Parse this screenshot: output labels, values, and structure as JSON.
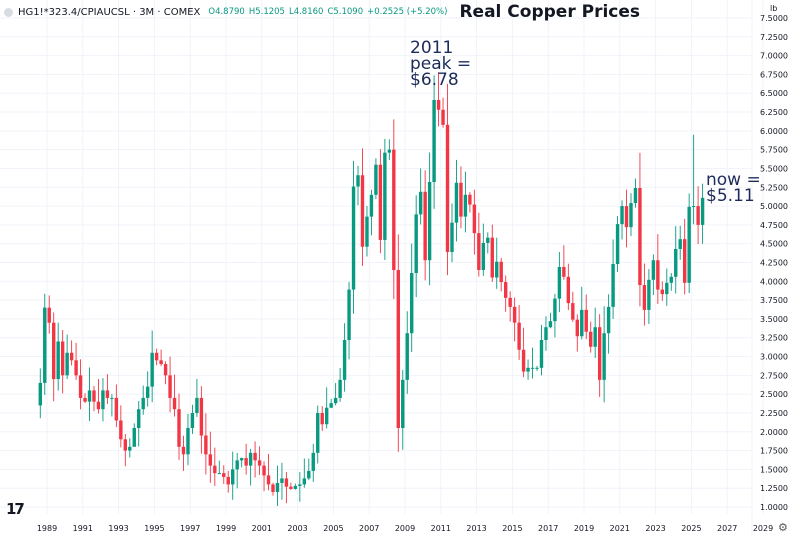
{
  "header": {
    "symbol": "HG1!*323.4/CPIAUCSL · 3M · COMEX",
    "open": "O4.8790",
    "high": "H5.1205",
    "low": "L4.8160",
    "close": "C5.1090",
    "change": "+0.2525 (+5.20%)",
    "title": "Real Copper Prices"
  },
  "unit_label": "lb",
  "logo": "TV",
  "settings_icon": "gear-icon",
  "annotations": {
    "peak": [
      "2011",
      "peak =",
      "$6.78"
    ],
    "now": [
      "now =",
      "$5.11"
    ]
  },
  "colors": {
    "up": "#089981",
    "down": "#f23645",
    "grid": "#f0f3fa",
    "annotation": "#1c2b5a"
  },
  "chart_data": {
    "type": "candlestick",
    "title": "Real Copper Prices",
    "ylabel": "lb",
    "interval": "3M",
    "start_quarter": "1988-Q3",
    "first_open": 2.35,
    "ylim": [
      1.0,
      7.5
    ],
    "y_ticks": [
      "7.5000",
      "7.2500",
      "7.0000",
      "6.7500",
      "6.5000",
      "6.2500",
      "6.0000",
      "5.7500",
      "5.5000",
      "5.2500",
      "5.0000",
      "4.7500",
      "4.5000",
      "4.2500",
      "4.0000",
      "3.7500",
      "3.5000",
      "3.2500",
      "3.0000",
      "2.7500",
      "2.5000",
      "2.2500",
      "2.0000",
      "1.7500",
      "1.5000",
      "1.2500",
      "1.0000"
    ],
    "x_ticks": [
      "1989",
      "1991",
      "1993",
      "1995",
      "1997",
      "1999",
      "2001",
      "2003",
      "2005",
      "2007",
      "2009",
      "2011",
      "2013",
      "2015",
      "2017",
      "2019",
      "2021",
      "2023",
      "2025",
      "2027",
      "2029"
    ],
    "closes": [
      2.65,
      3.65,
      3.45,
      2.7,
      3.2,
      2.75,
      3.05,
      2.95,
      2.75,
      2.45,
      2.4,
      2.55,
      2.4,
      2.3,
      2.55,
      2.45,
      2.45,
      2.15,
      1.9,
      1.75,
      1.8,
      2.05,
      2.3,
      2.45,
      2.6,
      3.05,
      2.95,
      2.9,
      2.75,
      2.45,
      2.3,
      1.8,
      1.7,
      2.05,
      2.25,
      2.45,
      1.95,
      1.7,
      1.55,
      1.45,
      1.45,
      1.4,
      1.3,
      1.5,
      1.62,
      1.65,
      1.55,
      1.72,
      1.62,
      1.55,
      1.42,
      1.3,
      1.2,
      1.32,
      1.38,
      1.27,
      1.24,
      1.28,
      1.3,
      1.38,
      1.48,
      1.72,
      2.25,
      2.1,
      2.32,
      2.38,
      2.45,
      2.69,
      3.22,
      3.89,
      5.26,
      5.41,
      4.46,
      4.86,
      5.15,
      5.55,
      4.55,
      5.71,
      5.75,
      4.15,
      2.05,
      2.69,
      3.31,
      4.11,
      4.89,
      5.19,
      4.28,
      5.32,
      6.41,
      6.28,
      6.08,
      4.39,
      4.78,
      5.31,
      4.86,
      5.15,
      5.02,
      4.64,
      4.15,
      4.51,
      4.58,
      4.05,
      4.26,
      3.99,
      3.78,
      3.66,
      3.45,
      3.09,
      2.8,
      2.85,
      2.85,
      2.85,
      3.22,
      3.39,
      3.47,
      3.77,
      4.19,
      4.06,
      3.71,
      3.49,
      3.27,
      3.62,
      3.33,
      3.13,
      3.39,
      2.69,
      3.31,
      3.66,
      4.23,
      4.76,
      5.0,
      4.72,
      5.04,
      5.24,
      3.95,
      3.62,
      4.02,
      4.28,
      3.89,
      3.83,
      3.98,
      4.06,
      4.43,
      4.56,
      3.98,
      4.99,
      5.0,
      4.75,
      5.109
    ],
    "notable": {
      "peak_2011_high": 6.78,
      "current_close": 5.11,
      "spike_2024_high": 5.95,
      "low_2008": 1.9
    },
    "grid": true
  }
}
